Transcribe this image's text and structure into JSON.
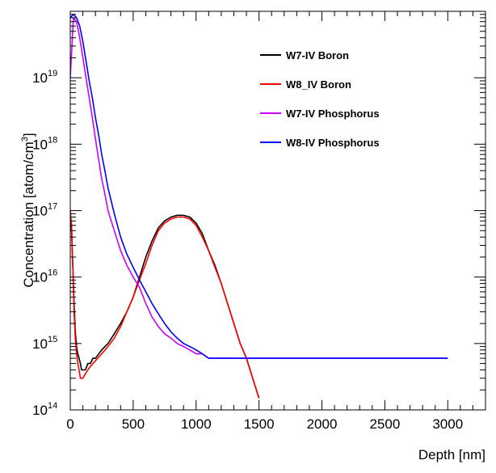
{
  "chart_data": {
    "type": "line",
    "xlabel": "Depth [nm]",
    "ylabel_text": "Concentration [atom/cm",
    "ylabel_sup": "3",
    "ylabel_close": "]",
    "xlim": [
      0,
      3300
    ],
    "ylim": [
      100000000000000.0,
      1e+20
    ],
    "yscale": "log",
    "grid": false,
    "legend_position": "top-right",
    "x_ticks": [
      0,
      500,
      1000,
      1500,
      2000,
      2500,
      3000
    ],
    "x_tick_labels": [
      "0",
      "500",
      "1000",
      "1500",
      "2000",
      "2500",
      "3000"
    ],
    "y_ticks": [
      100000000000000.0,
      1000000000000000.0,
      1e+16,
      1e+17,
      1e+18,
      1e+19
    ],
    "y_tick_base": "10",
    "y_tick_exponents": [
      "14",
      "15",
      "16",
      "17",
      "18",
      "19"
    ],
    "series": [
      {
        "name": "W7-IV Boron",
        "color": "#000000",
        "x": [
          0,
          10,
          20,
          30,
          40,
          50,
          60,
          70,
          80,
          90,
          100,
          120,
          140,
          160,
          180,
          200,
          250,
          300,
          350,
          400,
          450,
          500,
          550,
          600,
          650,
          700,
          750,
          800,
          850,
          900,
          950,
          1000,
          1050,
          1100,
          1150,
          1200,
          1250,
          1300,
          1350,
          1400,
          1450,
          1500
        ],
        "y": [
          8e+16,
          5e+16,
          1.5e+16,
          4000000000000000.0,
          1500000000000000.0,
          900000000000000.0,
          700000000000000.0,
          600000000000000.0,
          500000000000000.0,
          400000000000000.0,
          400000000000000.0,
          400000000000000.0,
          500000000000000.0,
          500000000000000.0,
          600000000000000.0,
          600000000000000.0,
          800000000000000.0,
          1000000000000000.0,
          1400000000000000.0,
          2000000000000000.0,
          3000000000000000.0,
          5000000000000000.0,
          1e+16,
          2e+16,
          3.5e+16,
          5.5e+16,
          7e+16,
          8e+16,
          8.5e+16,
          8.5e+16,
          8e+16,
          6.5e+16,
          4.5e+16,
          2.5e+16,
          1.5e+16,
          8000000000000000.0,
          4000000000000000.0,
          2000000000000000.0,
          1000000000000000.0,
          600000000000000.0,
          300000000000000.0,
          150000000000000.0
        ]
      },
      {
        "name": "W8_IV Boron",
        "color": "#ff0000",
        "x": [
          0,
          10,
          20,
          30,
          40,
          50,
          60,
          70,
          80,
          90,
          100,
          120,
          140,
          160,
          180,
          200,
          250,
          300,
          350,
          400,
          450,
          500,
          550,
          600,
          650,
          700,
          750,
          800,
          850,
          900,
          950,
          1000,
          1050,
          1100,
          1150,
          1200,
          1250,
          1300,
          1350,
          1400,
          1450,
          1500
        ],
        "y": [
          1e+17,
          6e+16,
          1.5e+16,
          3000000000000000.0,
          1200000000000000.0,
          700000000000000.0,
          500000000000000.0,
          400000000000000.0,
          300000000000000.0,
          300000000000000.0,
          300000000000000.0,
          350000000000000.0,
          400000000000000.0,
          450000000000000.0,
          500000000000000.0,
          550000000000000.0,
          700000000000000.0,
          900000000000000.0,
          1200000000000000.0,
          1800000000000000.0,
          3000000000000000.0,
          5000000000000000.0,
          9000000000000000.0,
          1.6e+16,
          3e+16,
          5e+16,
          6.5e+16,
          7.5e+16,
          8e+16,
          8e+16,
          7.5e+16,
          6e+16,
          4e+16,
          2.5e+16,
          1.4e+16,
          8000000000000000.0,
          4000000000000000.0,
          2000000000000000.0,
          1000000000000000.0,
          600000000000000.0,
          300000000000000.0,
          150000000000000.0
        ]
      },
      {
        "name": "W7-IV Phosphorus",
        "color": "#cc00ff",
        "x": [
          0,
          25,
          50,
          75,
          100,
          125,
          150,
          175,
          200,
          225,
          250,
          275,
          300,
          350,
          400,
          450,
          500,
          550,
          600,
          650,
          700,
          750,
          800,
          850,
          900,
          950,
          1000,
          1050,
          1100,
          1150,
          1200,
          1250,
          1300,
          1350,
          1400,
          1450,
          1500,
          1600,
          1700,
          1800,
          1900,
          2000,
          2100,
          2200,
          2300,
          2400,
          2500,
          2600,
          2700,
          2800,
          2900,
          3000
        ],
        "y": [
          1e+19,
          8e+19,
          7e+19,
          4e+19,
          2e+19,
          1e+19,
          5e+18,
          2.5e+18,
          1.2e+18,
          6e+17,
          3e+17,
          1.8e+17,
          1e+17,
          5e+16,
          2.5e+16,
          1.5e+16,
          1e+16,
          7000000000000000.0,
          4000000000000000.0,
          2500000000000000.0,
          1800000000000000.0,
          1400000000000000.0,
          1200000000000000.0,
          1000000000000000.0,
          900000000000000.0,
          800000000000000.0,
          700000000000000.0,
          700000000000000.0,
          600000000000000.0,
          600000000000000.0,
          600000000000000.0,
          600000000000000.0,
          600000000000000.0,
          600000000000000.0,
          600000000000000.0,
          600000000000000.0,
          600000000000000.0,
          600000000000000.0,
          600000000000000.0,
          600000000000000.0,
          600000000000000.0,
          600000000000000.0,
          600000000000000.0,
          600000000000000.0,
          600000000000000.0,
          600000000000000.0,
          600000000000000.0,
          600000000000000.0,
          600000000000000.0,
          600000000000000.0,
          600000000000000.0,
          600000000000000.0
        ]
      },
      {
        "name": "W8-IV Phosphorus",
        "color": "#0000ff",
        "x": [
          0,
          25,
          50,
          75,
          100,
          125,
          150,
          175,
          200,
          225,
          250,
          275,
          300,
          350,
          400,
          450,
          500,
          550,
          600,
          650,
          700,
          750,
          800,
          850,
          900,
          950,
          1000,
          1050,
          1100,
          1150,
          1200,
          1250,
          1300,
          1350,
          1400,
          1450,
          1500,
          1600,
          1700,
          1800,
          1900,
          2000,
          2100,
          2200,
          2300,
          2400,
          2500,
          2600,
          2700,
          2800,
          2900,
          3000
        ],
        "y": [
          8e+19,
          9e+19,
          8e+19,
          6e+19,
          3.5e+19,
          1.8e+19,
          9e+18,
          5e+18,
          2.5e+18,
          1.4e+18,
          7e+17,
          4e+17,
          2.2e+17,
          9e+16,
          4e+16,
          2.2e+16,
          1.4e+16,
          9000000000000000.0,
          6000000000000000.0,
          4000000000000000.0,
          2800000000000000.0,
          2000000000000000.0,
          1500000000000000.0,
          1200000000000000.0,
          1000000000000000.0,
          900000000000000.0,
          800000000000000.0,
          700000000000000.0,
          600000000000000.0,
          600000000000000.0,
          600000000000000.0,
          600000000000000.0,
          600000000000000.0,
          600000000000000.0,
          600000000000000.0,
          600000000000000.0,
          600000000000000.0,
          600000000000000.0,
          600000000000000.0,
          600000000000000.0,
          600000000000000.0,
          600000000000000.0,
          600000000000000.0,
          600000000000000.0,
          600000000000000.0,
          600000000000000.0,
          600000000000000.0,
          600000000000000.0,
          600000000000000.0,
          600000000000000.0,
          600000000000000.0,
          600000000000000.0
        ]
      }
    ]
  }
}
